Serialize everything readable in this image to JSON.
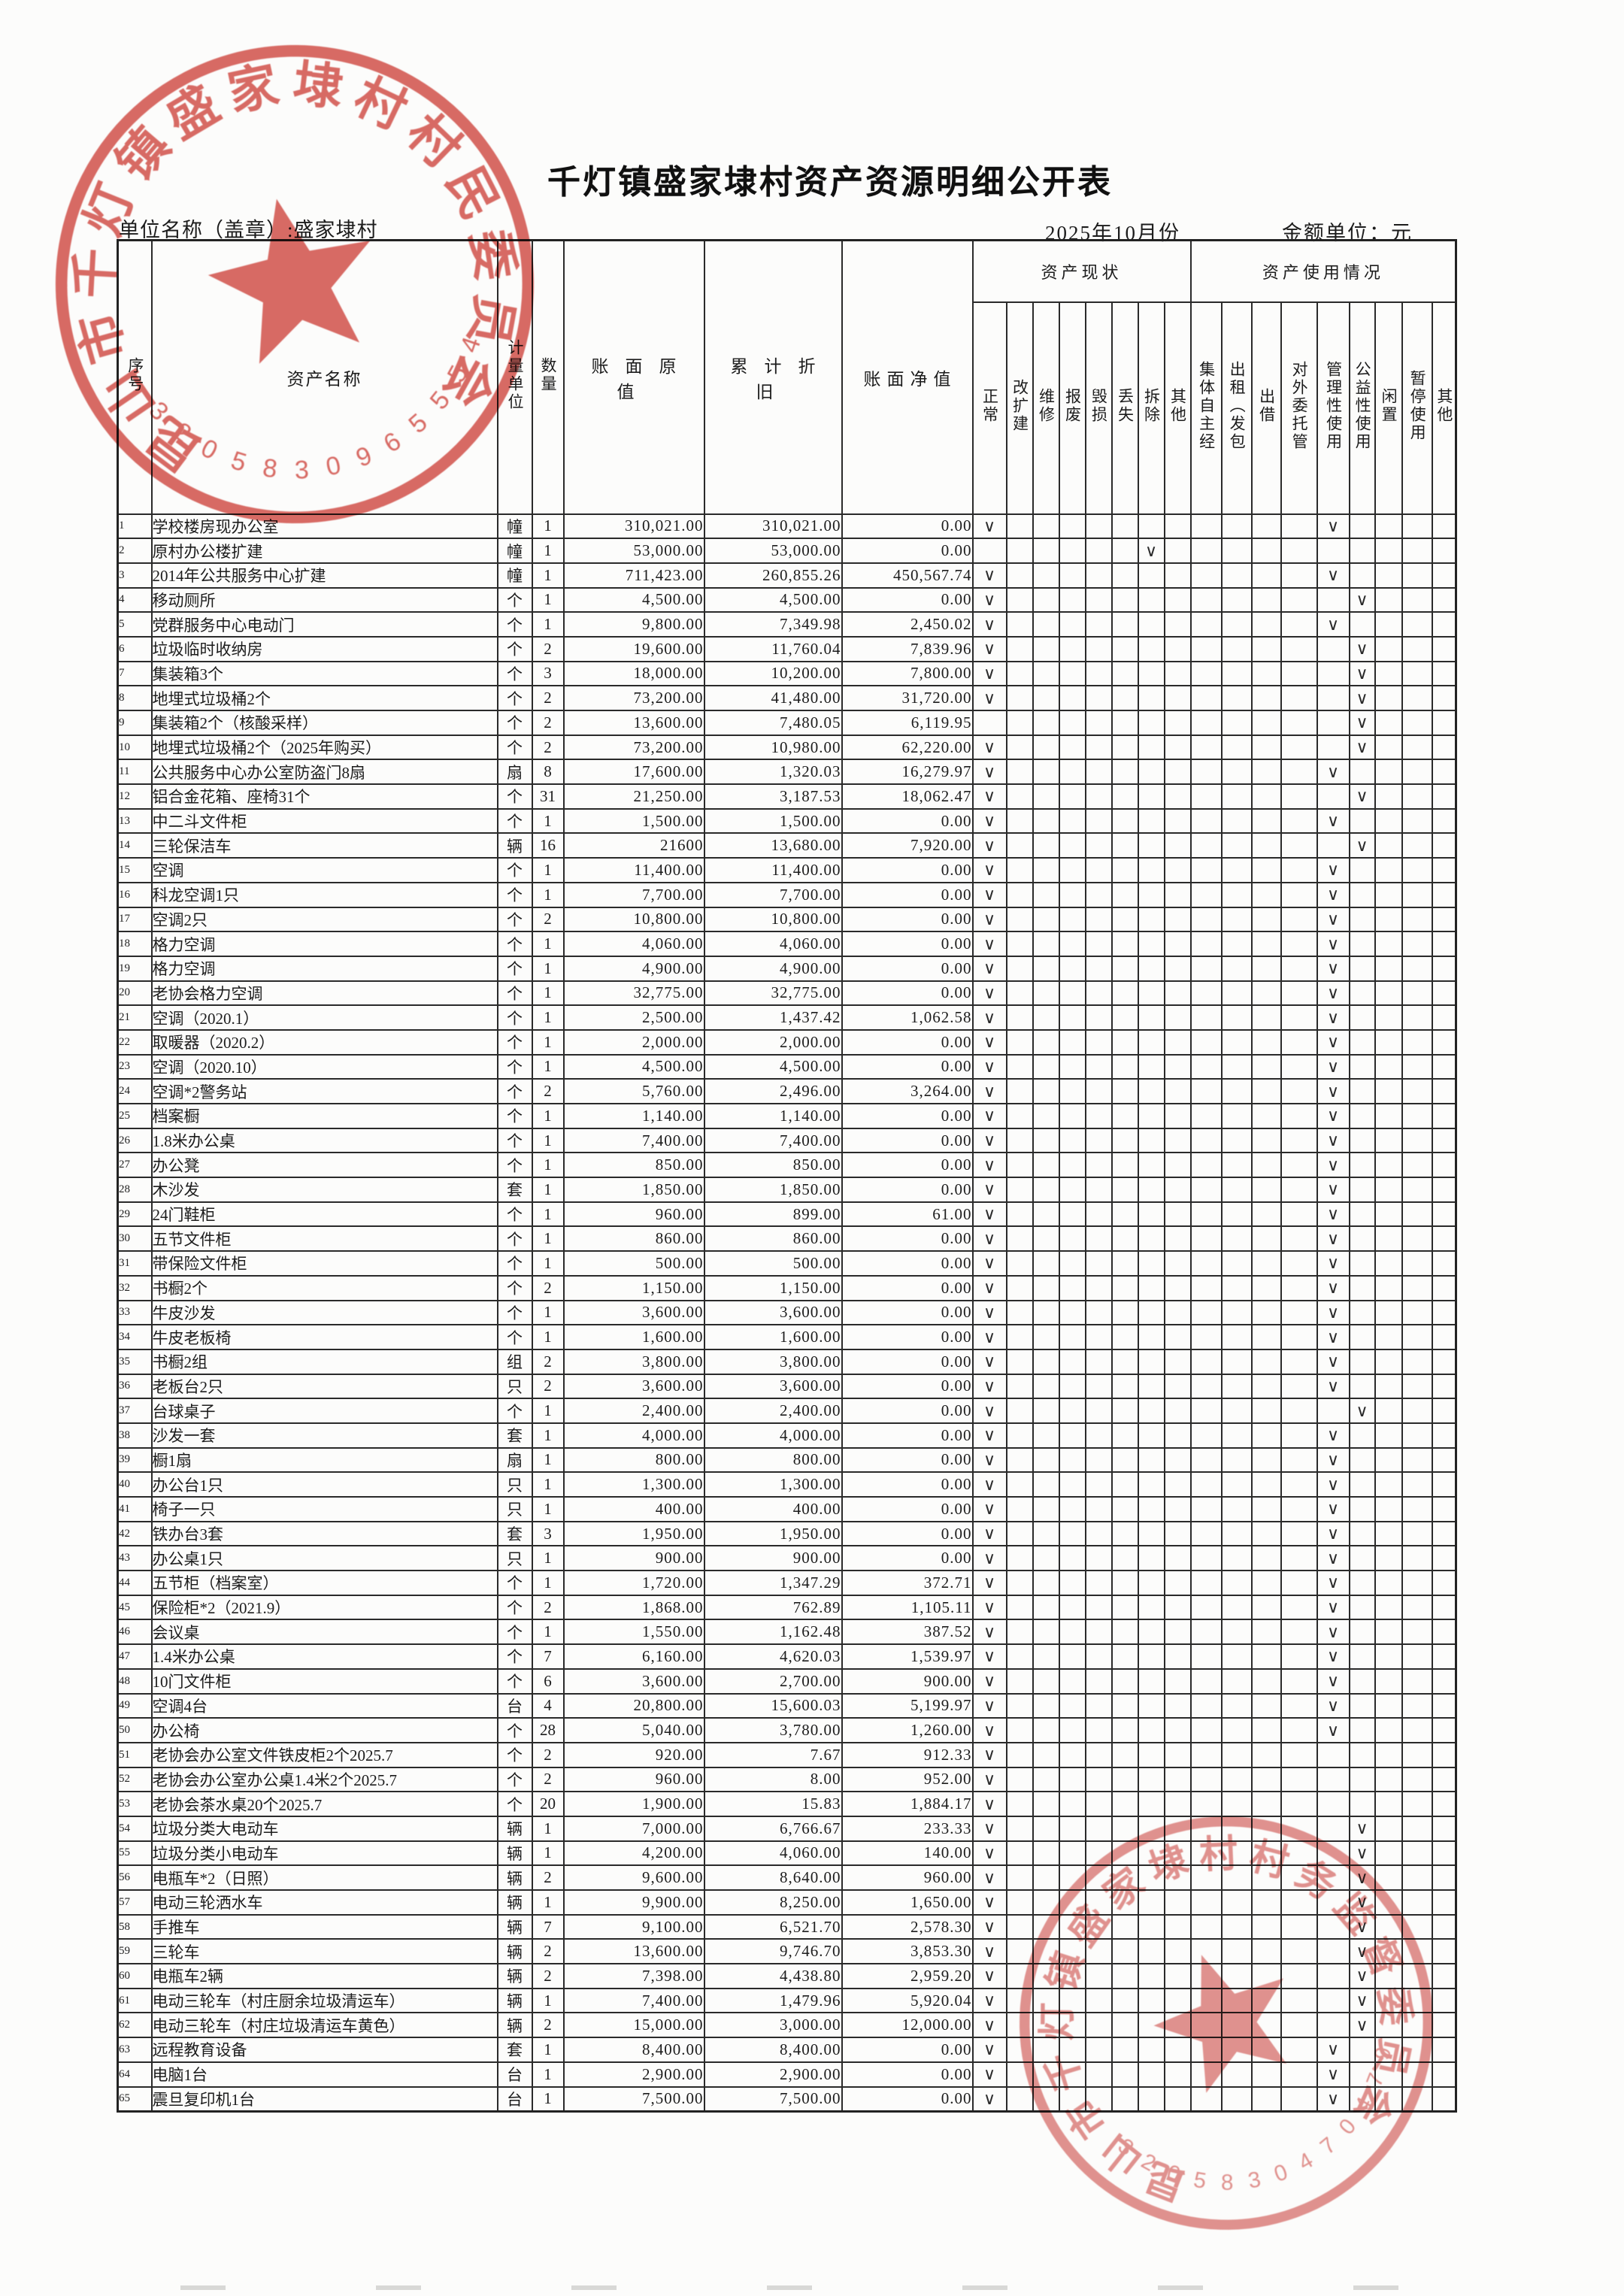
{
  "page": {
    "title": "千灯镇盛家埭村资产资源明细公开表",
    "unit_name_line": "单位名称（盖章）:盛家埭村",
    "period": "2025年10月份",
    "amount_unit": "金额单位：元"
  },
  "seals": {
    "top": {
      "text": "昆山市千灯镇盛家埭村村民委员会",
      "number": "3205830965554",
      "color": "#d24a43"
    },
    "bottom": {
      "text": "昆山市千灯镇盛家埭村村务监督委员会",
      "number": "3205830470479",
      "color": "#cf4a45"
    }
  },
  "table": {
    "col_headers": {
      "index": "序号",
      "name": "资产名称",
      "unit": "计量单位",
      "qty": "数量",
      "orig": "账面原值",
      "dep": "累计折旧",
      "net": "账面净值",
      "status_group": "资产现状",
      "usage_group": "资产使用情况"
    },
    "status_options": [
      "正常",
      "改扩建",
      "维修",
      "报废",
      "毁损",
      "丢失",
      "拆除",
      "其他"
    ],
    "usage_options": [
      "集体自主经",
      "出租（发包",
      "出借",
      "对外委托管",
      "管理性使用",
      "公益性使用",
      "闲置",
      "暂停使用",
      "其他"
    ],
    "check_mark": "∨",
    "rows": [
      [
        1,
        "学校楼房现办公室",
        "幢",
        "1",
        "310,021.00",
        "310,021.00",
        "0.00",
        "正常",
        "管理性使用"
      ],
      [
        2,
        "原村办公楼扩建",
        "幢",
        "1",
        "53,000.00",
        "53,000.00",
        "0.00",
        "拆除",
        ""
      ],
      [
        3,
        "2014年公共服务中心扩建",
        "幢",
        "1",
        "711,423.00",
        "260,855.26",
        "450,567.74",
        "正常",
        "管理性使用"
      ],
      [
        4,
        "移动厕所",
        "个",
        "1",
        "4,500.00",
        "4,500.00",
        "0.00",
        "正常",
        "公益性使用"
      ],
      [
        5,
        "党群服务中心电动门",
        "个",
        "1",
        "9,800.00",
        "7,349.98",
        "2,450.02",
        "正常",
        "管理性使用"
      ],
      [
        6,
        "垃圾临时收纳房",
        "个",
        "2",
        "19,600.00",
        "11,760.04",
        "7,839.96",
        "正常",
        "公益性使用"
      ],
      [
        7,
        "集装箱3个",
        "个",
        "3",
        "18,000.00",
        "10,200.00",
        "7,800.00",
        "正常",
        "公益性使用"
      ],
      [
        8,
        "地埋式垃圾桶2个",
        "个",
        "2",
        "73,200.00",
        "41,480.00",
        "31,720.00",
        "正常",
        "公益性使用"
      ],
      [
        9,
        "集装箱2个（核酸采样）",
        "个",
        "2",
        "13,600.00",
        "7,480.05",
        "6,119.95",
        "",
        "公益性使用"
      ],
      [
        10,
        "地埋式垃圾桶2个（2025年购买）",
        "个",
        "2",
        "73,200.00",
        "10,980.00",
        "62,220.00",
        "正常",
        "公益性使用"
      ],
      [
        11,
        "公共服务中心办公室防盗门8扇",
        "扇",
        "8",
        "17,600.00",
        "1,320.03",
        "16,279.97",
        "正常",
        "管理性使用"
      ],
      [
        12,
        "铝合金花箱、座椅31个",
        "个",
        "31",
        "21,250.00",
        "3,187.53",
        "18,062.47",
        "正常",
        "公益性使用"
      ],
      [
        13,
        "中二斗文件柜",
        "个",
        "1",
        "1,500.00",
        "1,500.00",
        "0.00",
        "正常",
        "管理性使用"
      ],
      [
        14,
        "三轮保洁车",
        "辆",
        "16",
        "21600",
        "13,680.00",
        "7,920.00",
        "正常",
        "公益性使用"
      ],
      [
        15,
        "空调",
        "个",
        "1",
        "11,400.00",
        "11,400.00",
        "0.00",
        "正常",
        "管理性使用"
      ],
      [
        16,
        "科龙空调1只",
        "个",
        "1",
        "7,700.00",
        "7,700.00",
        "0.00",
        "正常",
        "管理性使用"
      ],
      [
        17,
        "空调2只",
        "个",
        "2",
        "10,800.00",
        "10,800.00",
        "0.00",
        "正常",
        "管理性使用"
      ],
      [
        18,
        "格力空调",
        "个",
        "1",
        "4,060.00",
        "4,060.00",
        "0.00",
        "正常",
        "管理性使用"
      ],
      [
        19,
        "格力空调",
        "个",
        "1",
        "4,900.00",
        "4,900.00",
        "0.00",
        "正常",
        "管理性使用"
      ],
      [
        20,
        "老协会格力空调",
        "个",
        "1",
        "32,775.00",
        "32,775.00",
        "0.00",
        "正常",
        "管理性使用"
      ],
      [
        21,
        "空调（2020.1）",
        "个",
        "1",
        "2,500.00",
        "1,437.42",
        "1,062.58",
        "正常",
        "管理性使用"
      ],
      [
        22,
        "取暖器（2020.2）",
        "个",
        "1",
        "2,000.00",
        "2,000.00",
        "0.00",
        "正常",
        "管理性使用"
      ],
      [
        23,
        "空调（2020.10）",
        "个",
        "1",
        "4,500.00",
        "4,500.00",
        "0.00",
        "正常",
        "管理性使用"
      ],
      [
        24,
        "空调*2警务站",
        "个",
        "2",
        "5,760.00",
        "2,496.00",
        "3,264.00",
        "正常",
        "管理性使用"
      ],
      [
        25,
        "档案橱",
        "个",
        "1",
        "1,140.00",
        "1,140.00",
        "0.00",
        "正常",
        "管理性使用"
      ],
      [
        26,
        "1.8米办公桌",
        "个",
        "1",
        "7,400.00",
        "7,400.00",
        "0.00",
        "正常",
        "管理性使用"
      ],
      [
        27,
        "办公凳",
        "个",
        "1",
        "850.00",
        "850.00",
        "0.00",
        "正常",
        "管理性使用"
      ],
      [
        28,
        "木沙发",
        "套",
        "1",
        "1,850.00",
        "1,850.00",
        "0.00",
        "正常",
        "管理性使用"
      ],
      [
        29,
        "24门鞋柜",
        "个",
        "1",
        "960.00",
        "899.00",
        "61.00",
        "正常",
        "管理性使用"
      ],
      [
        30,
        "五节文件柜",
        "个",
        "1",
        "860.00",
        "860.00",
        "0.00",
        "正常",
        "管理性使用"
      ],
      [
        31,
        "带保险文件柜",
        "个",
        "1",
        "500.00",
        "500.00",
        "0.00",
        "正常",
        "管理性使用"
      ],
      [
        32,
        "书橱2个",
        "个",
        "2",
        "1,150.00",
        "1,150.00",
        "0.00",
        "正常",
        "管理性使用"
      ],
      [
        33,
        "牛皮沙发",
        "个",
        "1",
        "3,600.00",
        "3,600.00",
        "0.00",
        "正常",
        "管理性使用"
      ],
      [
        34,
        "牛皮老板椅",
        "个",
        "1",
        "1,600.00",
        "1,600.00",
        "0.00",
        "正常",
        "管理性使用"
      ],
      [
        35,
        "书橱2组",
        "组",
        "2",
        "3,800.00",
        "3,800.00",
        "0.00",
        "正常",
        "管理性使用"
      ],
      [
        36,
        "老板台2只",
        "只",
        "2",
        "3,600.00",
        "3,600.00",
        "0.00",
        "正常",
        "管理性使用"
      ],
      [
        37,
        "台球桌子",
        "个",
        "1",
        "2,400.00",
        "2,400.00",
        "0.00",
        "正常",
        "公益性使用"
      ],
      [
        38,
        "沙发一套",
        "套",
        "1",
        "4,000.00",
        "4,000.00",
        "0.00",
        "正常",
        "管理性使用"
      ],
      [
        39,
        "橱1扇",
        "扇",
        "1",
        "800.00",
        "800.00",
        "0.00",
        "正常",
        "管理性使用"
      ],
      [
        40,
        "办公台1只",
        "只",
        "1",
        "1,300.00",
        "1,300.00",
        "0.00",
        "正常",
        "管理性使用"
      ],
      [
        41,
        "椅子一只",
        "只",
        "1",
        "400.00",
        "400.00",
        "0.00",
        "正常",
        "管理性使用"
      ],
      [
        42,
        "铁办台3套",
        "套",
        "3",
        "1,950.00",
        "1,950.00",
        "0.00",
        "正常",
        "管理性使用"
      ],
      [
        43,
        "办公桌1只",
        "只",
        "1",
        "900.00",
        "900.00",
        "0.00",
        "正常",
        "管理性使用"
      ],
      [
        44,
        "五节柜（档案室）",
        "个",
        "1",
        "1,720.00",
        "1,347.29",
        "372.71",
        "正常",
        "管理性使用"
      ],
      [
        45,
        "保险柜*2（2021.9）",
        "个",
        "2",
        "1,868.00",
        "762.89",
        "1,105.11",
        "正常",
        "管理性使用"
      ],
      [
        46,
        "会议桌",
        "个",
        "1",
        "1,550.00",
        "1,162.48",
        "387.52",
        "正常",
        "管理性使用"
      ],
      [
        47,
        "1.4米办公桌",
        "个",
        "7",
        "6,160.00",
        "4,620.03",
        "1,539.97",
        "正常",
        "管理性使用"
      ],
      [
        48,
        "10门文件柜",
        "个",
        "6",
        "3,600.00",
        "2,700.00",
        "900.00",
        "正常",
        "管理性使用"
      ],
      [
        49,
        "空调4台",
        "台",
        "4",
        "20,800.00",
        "15,600.03",
        "5,199.97",
        "正常",
        "管理性使用"
      ],
      [
        50,
        "办公椅",
        "个",
        "28",
        "5,040.00",
        "3,780.00",
        "1,260.00",
        "正常",
        "管理性使用"
      ],
      [
        51,
        "老协会办公室文件铁皮柜2个2025.7",
        "个",
        "2",
        "920.00",
        "7.67",
        "912.33",
        "正常",
        ""
      ],
      [
        52,
        "老协会办公室办公桌1.4米2个2025.7",
        "个",
        "2",
        "960.00",
        "8.00",
        "952.00",
        "正常",
        ""
      ],
      [
        53,
        "老协会茶水桌20个2025.7",
        "个",
        "20",
        "1,900.00",
        "15.83",
        "1,884.17",
        "正常",
        ""
      ],
      [
        54,
        "垃圾分类大电动车",
        "辆",
        "1",
        "7,000.00",
        "6,766.67",
        "233.33",
        "正常",
        "公益性使用"
      ],
      [
        55,
        "垃圾分类小电动车",
        "辆",
        "1",
        "4,200.00",
        "4,060.00",
        "140.00",
        "正常",
        "公益性使用"
      ],
      [
        56,
        "电瓶车*2（日照）",
        "辆",
        "2",
        "9,600.00",
        "8,640.00",
        "960.00",
        "正常",
        "公益性使用"
      ],
      [
        57,
        "电动三轮洒水车",
        "辆",
        "1",
        "9,900.00",
        "8,250.00",
        "1,650.00",
        "正常",
        "公益性使用"
      ],
      [
        58,
        "手推车",
        "辆",
        "7",
        "9,100.00",
        "6,521.70",
        "2,578.30",
        "正常",
        "公益性使用"
      ],
      [
        59,
        "三轮车",
        "辆",
        "2",
        "13,600.00",
        "9,746.70",
        "3,853.30",
        "正常",
        "公益性使用"
      ],
      [
        60,
        "电瓶车2辆",
        "辆",
        "2",
        "7,398.00",
        "4,438.80",
        "2,959.20",
        "正常",
        "公益性使用"
      ],
      [
        61,
        "电动三轮车（村庄厨余垃圾清运车）",
        "辆",
        "1",
        "7,400.00",
        "1,479.96",
        "5,920.04",
        "正常",
        "公益性使用"
      ],
      [
        62,
        "电动三轮车（村庄垃圾清运车黄色）",
        "辆",
        "2",
        "15,000.00",
        "3,000.00",
        "12,000.00",
        "正常",
        "公益性使用"
      ],
      [
        63,
        "远程教育设备",
        "套",
        "1",
        "8,400.00",
        "8,400.00",
        "0.00",
        "正常",
        "管理性使用"
      ],
      [
        64,
        "电脑1台",
        "台",
        "1",
        "2,900.00",
        "2,900.00",
        "0.00",
        "正常",
        "管理性使用"
      ],
      [
        65,
        "震旦复印机1台",
        "台",
        "1",
        "7,500.00",
        "7,500.00",
        "0.00",
        "正常",
        "管理性使用"
      ]
    ]
  }
}
